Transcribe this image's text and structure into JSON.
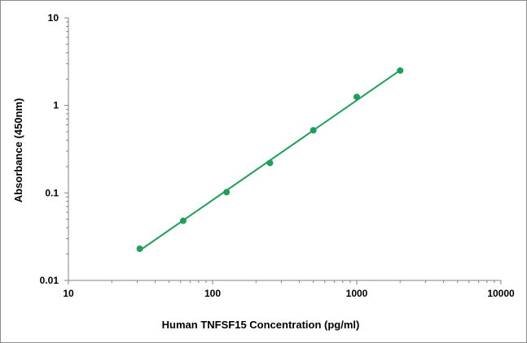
{
  "chart_data": {
    "type": "scatter",
    "title": "",
    "xlabel": "Human TNFSF15 Concentration (pg/ml)",
    "ylabel": "Absorbance (450nm)",
    "x_scale": "log",
    "y_scale": "log",
    "xlim": [
      10,
      10000
    ],
    "ylim": [
      0.01,
      10
    ],
    "x_ticks": [
      "10",
      "100",
      "1000",
      "10000"
    ],
    "y_ticks": [
      "0.01",
      "0.1",
      "1",
      "10"
    ],
    "grid": false,
    "legend": "none",
    "series": [
      {
        "points": [
          {
            "x": 31.25,
            "y": 0.023
          },
          {
            "x": 62.5,
            "y": 0.048
          },
          {
            "x": 125,
            "y": 0.102
          },
          {
            "x": 250,
            "y": 0.22
          },
          {
            "x": 500,
            "y": 0.52
          },
          {
            "x": 1000,
            "y": 1.25
          },
          {
            "x": 2000,
            "y": 2.5
          }
        ]
      }
    ],
    "fit_line": {
      "x": [
        31.25,
        2000
      ],
      "y": [
        0.022,
        2.52
      ]
    },
    "colors": {
      "series": "#1fa05a",
      "axis": "#808080"
    }
  }
}
